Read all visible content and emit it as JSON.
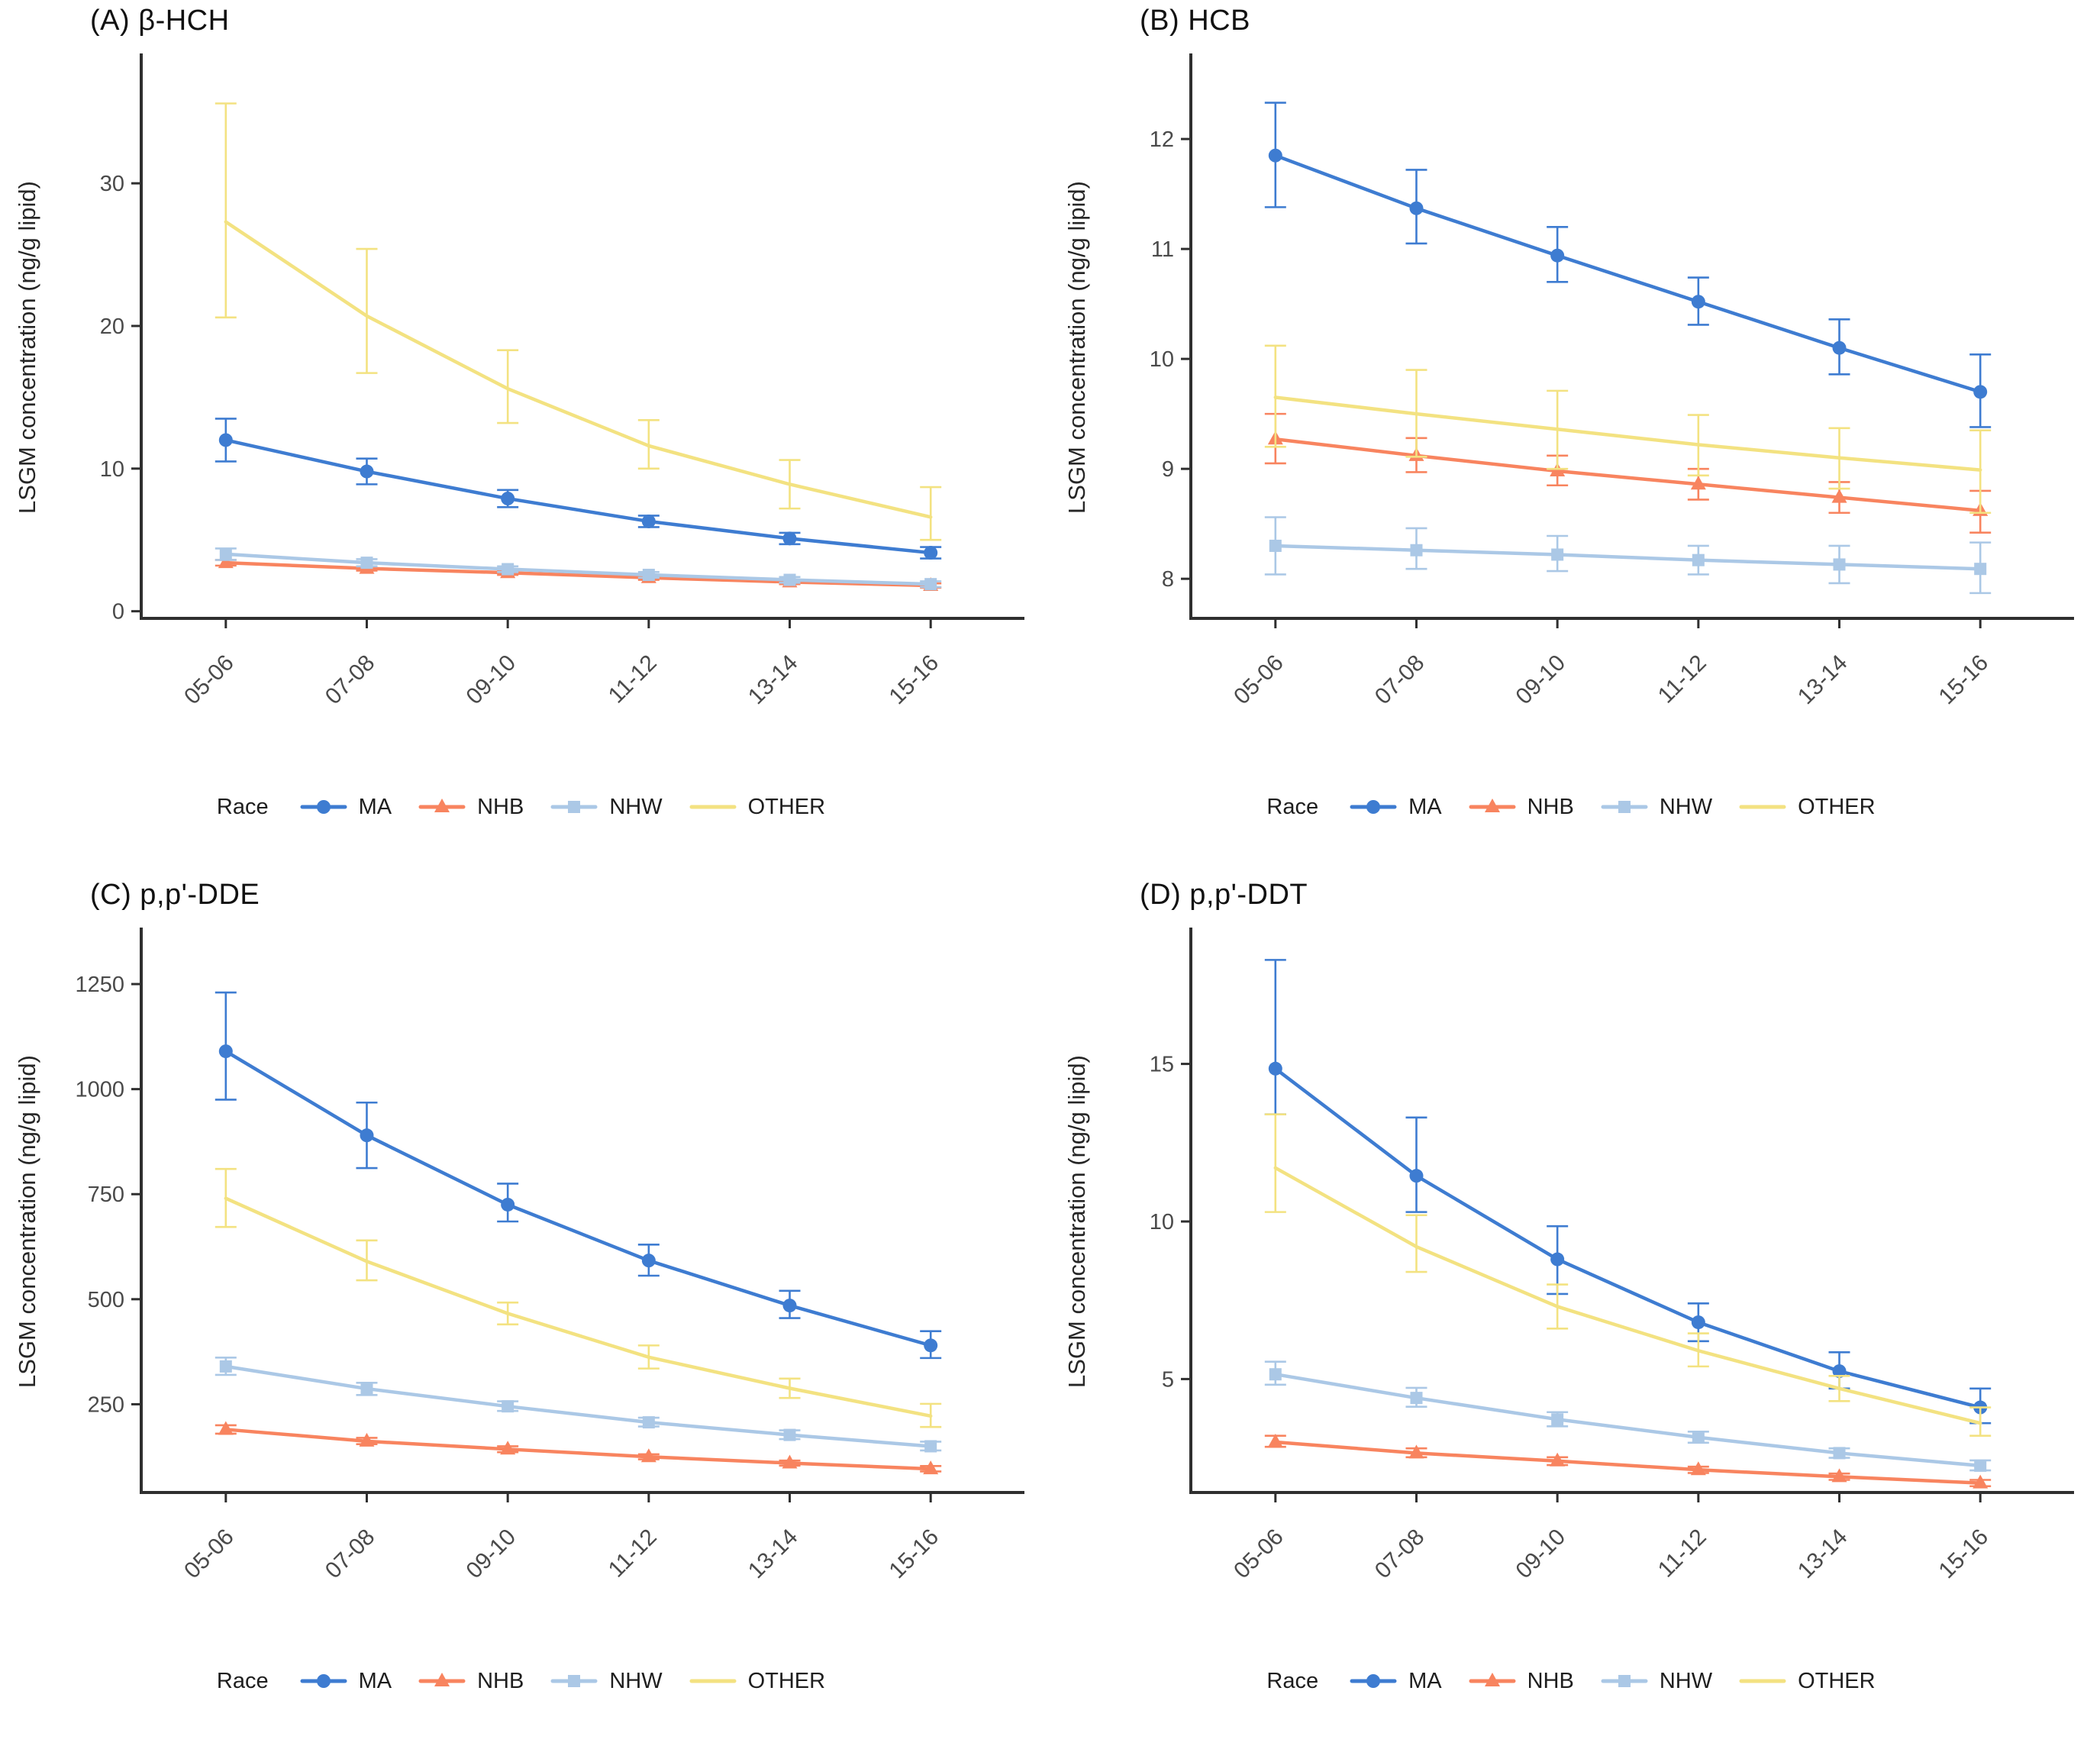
{
  "figure": {
    "background": "#ffffff",
    "axis_color": "#2f2f2f",
    "tick_label_color": "#4a4a4a",
    "title_color": "#111111"
  },
  "chart_data": [
    {
      "type": "line",
      "title": "(A) β-HCH",
      "xlabel": "",
      "ylabel": "LSGM concentration (ng/g lipid)",
      "legend_title": "Race",
      "legend_position": "bottom",
      "grid": false,
      "error_bars": true,
      "categories": [
        "05-06",
        "07-08",
        "09-10",
        "11-12",
        "13-14",
        "15-16"
      ],
      "yticks": [
        0,
        10,
        20,
        30
      ],
      "ylim": [
        -0.5,
        37.5
      ],
      "series": [
        {
          "name": "MA",
          "color": "#3e7cd1",
          "marker": "circle",
          "values": [
            12.0,
            9.8,
            7.9,
            6.3,
            5.1,
            4.1
          ],
          "err_low": [
            10.5,
            8.9,
            7.3,
            5.9,
            4.7,
            3.7
          ],
          "err_high": [
            13.5,
            10.7,
            8.5,
            6.7,
            5.5,
            4.5
          ]
        },
        {
          "name": "NHB",
          "color": "#f8845f",
          "marker": "triangle",
          "values": [
            3.4,
            3.0,
            2.7,
            2.35,
            2.05,
            1.8
          ],
          "err_low": [
            3.2,
            2.85,
            2.55,
            2.2,
            1.9,
            1.65
          ],
          "err_high": [
            3.6,
            3.15,
            2.85,
            2.5,
            2.2,
            1.95
          ]
        },
        {
          "name": "NHW",
          "color": "#abc8e6",
          "marker": "square",
          "values": [
            4.0,
            3.4,
            2.95,
            2.55,
            2.2,
            1.9
          ],
          "err_low": [
            3.6,
            3.15,
            2.75,
            2.35,
            2.0,
            1.7
          ],
          "err_high": [
            4.4,
            3.65,
            3.15,
            2.75,
            2.4,
            2.1
          ]
        },
        {
          "name": "OTHER",
          "color": "#f3e281",
          "marker": "none",
          "values": [
            27.3,
            20.7,
            15.6,
            11.6,
            8.9,
            6.6
          ],
          "err_low": [
            20.6,
            16.7,
            13.2,
            10.0,
            7.2,
            5.0
          ],
          "err_high": [
            35.6,
            25.4,
            18.3,
            13.4,
            10.6,
            8.7
          ]
        }
      ]
    },
    {
      "type": "line",
      "title": "(B) HCB",
      "xlabel": "",
      "ylabel": "LSGM concentration (ng/g lipid)",
      "legend_title": "Race",
      "legend_position": "bottom",
      "grid": false,
      "error_bars": true,
      "categories": [
        "05-06",
        "07-08",
        "09-10",
        "11-12",
        "13-14",
        "15-16"
      ],
      "yticks": [
        8,
        9,
        10,
        11,
        12
      ],
      "ylim": [
        7.64,
        12.57
      ],
      "series": [
        {
          "name": "MA",
          "color": "#3e7cd1",
          "marker": "circle",
          "values": [
            11.85,
            11.37,
            10.94,
            10.52,
            10.1,
            9.7
          ],
          "err_low": [
            11.38,
            11.05,
            10.7,
            10.31,
            9.86,
            9.38
          ],
          "err_high": [
            12.33,
            11.72,
            11.2,
            10.74,
            10.36,
            10.04
          ]
        },
        {
          "name": "NHB",
          "color": "#f8845f",
          "marker": "triangle",
          "values": [
            9.27,
            9.12,
            8.98,
            8.86,
            8.74,
            8.62
          ],
          "err_low": [
            9.05,
            8.97,
            8.85,
            8.72,
            8.6,
            8.42
          ],
          "err_high": [
            9.5,
            9.28,
            9.12,
            9.0,
            8.88,
            8.8
          ]
        },
        {
          "name": "NHW",
          "color": "#abc8e6",
          "marker": "square",
          "values": [
            8.3,
            8.26,
            8.22,
            8.17,
            8.13,
            8.09
          ],
          "err_low": [
            8.04,
            8.09,
            8.07,
            8.04,
            7.96,
            7.87
          ],
          "err_high": [
            8.56,
            8.46,
            8.39,
            8.3,
            8.3,
            8.33
          ]
        },
        {
          "name": "OTHER",
          "color": "#f3e281",
          "marker": "none",
          "values": [
            9.65,
            9.5,
            9.36,
            9.22,
            9.1,
            8.99
          ],
          "err_low": [
            9.2,
            9.11,
            9.0,
            8.94,
            8.82,
            8.6
          ],
          "err_high": [
            10.12,
            9.9,
            9.71,
            9.49,
            9.37,
            9.35
          ]
        }
      ]
    },
    {
      "type": "line",
      "title": "(C) p,p'-DDE",
      "xlabel": "",
      "ylabel": "LSGM concentration (ng/g lipid)",
      "legend_title": "Race",
      "legend_position": "bottom",
      "grid": false,
      "error_bars": true,
      "categories": [
        "05-06",
        "07-08",
        "09-10",
        "11-12",
        "13-14",
        "15-16"
      ],
      "yticks": [
        250,
        500,
        750,
        1000,
        1250
      ],
      "ylim": [
        40,
        1330
      ],
      "series": [
        {
          "name": "MA",
          "color": "#3e7cd1",
          "marker": "circle",
          "values": [
            1090,
            890,
            725,
            592,
            485,
            390
          ],
          "err_low": [
            975,
            812,
            685,
            556,
            455,
            360
          ],
          "err_high": [
            1230,
            968,
            775,
            630,
            520,
            424
          ]
        },
        {
          "name": "NHB",
          "color": "#f8845f",
          "marker": "triangle",
          "values": [
            190,
            162,
            143,
            125,
            110,
            96
          ],
          "err_low": [
            180,
            155,
            136,
            119,
            104,
            90
          ],
          "err_high": [
            200,
            170,
            150,
            131,
            116,
            103
          ]
        },
        {
          "name": "NHW",
          "color": "#abc8e6",
          "marker": "square",
          "values": [
            340,
            287,
            245,
            207,
            177,
            150
          ],
          "err_low": [
            320,
            272,
            234,
            197,
            167,
            140
          ],
          "err_high": [
            361,
            301,
            257,
            218,
            188,
            161
          ]
        },
        {
          "name": "OTHER",
          "color": "#f3e281",
          "marker": "none",
          "values": [
            740,
            590,
            466,
            362,
            288,
            222
          ],
          "err_low": [
            672,
            545,
            440,
            335,
            265,
            196
          ],
          "err_high": [
            810,
            640,
            492,
            390,
            311,
            251
          ]
        }
      ]
    },
    {
      "type": "line",
      "title": "(D) p,p'-DDT",
      "xlabel": "",
      "ylabel": "LSGM concentration (ng/g lipid)",
      "legend_title": "Race",
      "legend_position": "bottom",
      "grid": false,
      "error_bars": true,
      "categories": [
        "05-06",
        "07-08",
        "09-10",
        "11-12",
        "13-14",
        "15-16"
      ],
      "yticks": [
        5,
        10,
        15
      ],
      "ylim": [
        1.4,
        18.6
      ],
      "series": [
        {
          "name": "MA",
          "color": "#3e7cd1",
          "marker": "circle",
          "values": [
            14.85,
            11.45,
            8.8,
            6.8,
            5.25,
            4.1
          ],
          "err_low": [
            13.4,
            10.3,
            7.7,
            6.2,
            4.7,
            3.6
          ],
          "err_high": [
            18.3,
            13.3,
            9.85,
            7.4,
            5.85,
            4.7
          ]
        },
        {
          "name": "NHB",
          "color": "#f8845f",
          "marker": "triangle",
          "values": [
            3.0,
            2.65,
            2.4,
            2.12,
            1.9,
            1.7
          ],
          "err_low": [
            2.85,
            2.52,
            2.27,
            2.02,
            1.8,
            1.6
          ],
          "err_high": [
            3.2,
            2.8,
            2.52,
            2.22,
            2.0,
            1.8
          ]
        },
        {
          "name": "NHW",
          "color": "#abc8e6",
          "marker": "square",
          "values": [
            5.15,
            4.4,
            3.72,
            3.15,
            2.65,
            2.25
          ],
          "err_low": [
            4.82,
            4.12,
            3.5,
            2.98,
            2.5,
            2.1
          ],
          "err_high": [
            5.55,
            4.72,
            3.95,
            3.33,
            2.8,
            2.42
          ]
        },
        {
          "name": "OTHER",
          "color": "#f3e281",
          "marker": "none",
          "values": [
            11.7,
            9.2,
            7.3,
            5.9,
            4.7,
            3.6
          ],
          "err_low": [
            10.3,
            8.4,
            6.6,
            5.4,
            4.3,
            3.2
          ],
          "err_high": [
            13.4,
            10.2,
            8.0,
            6.45,
            5.1,
            4.1
          ]
        }
      ]
    }
  ]
}
